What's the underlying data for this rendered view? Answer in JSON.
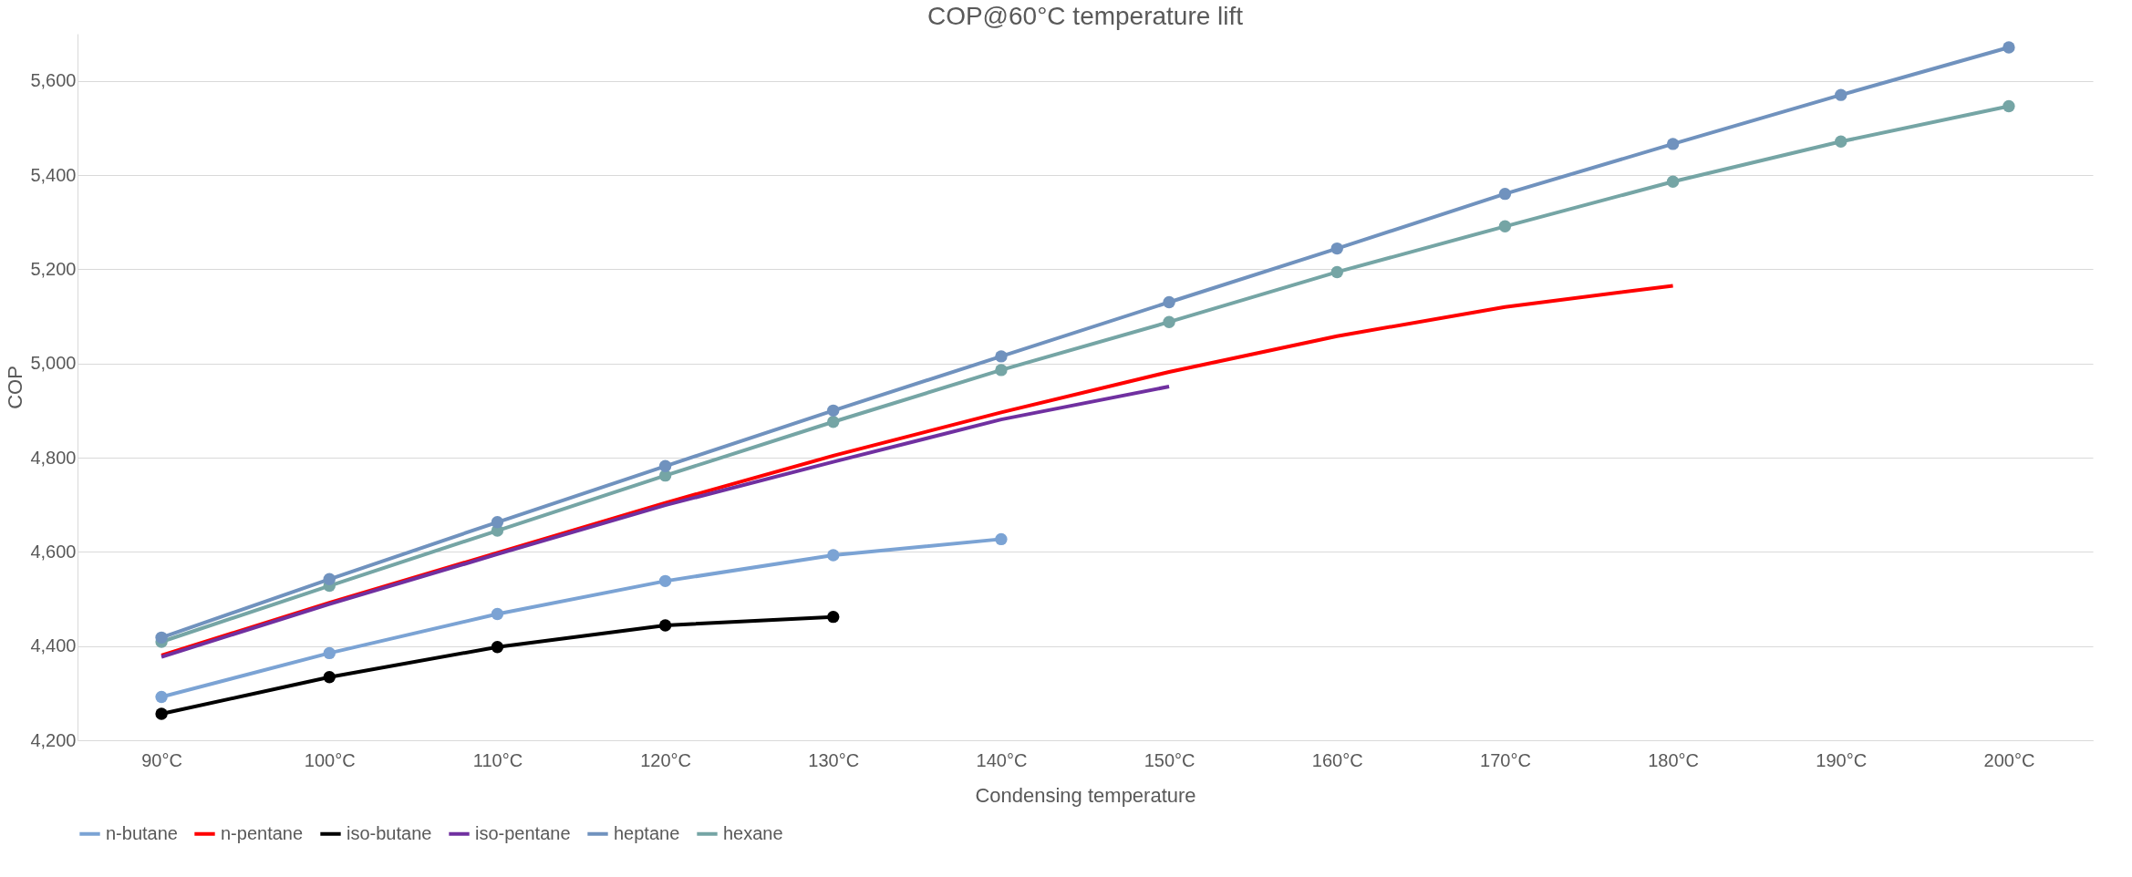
{
  "chart_data": {
    "type": "line",
    "title": "COP@60°C temperature lift",
    "xlabel": "Condensing temperature",
    "ylabel": "COP",
    "categories": [
      "90°C",
      "100°C",
      "110°C",
      "120°C",
      "130°C",
      "140°C",
      "150°C",
      "160°C",
      "170°C",
      "180°C",
      "190°C",
      "200°C"
    ],
    "series": [
      {
        "name": "n-butane",
        "color": "#7ba3d4",
        "values": [
          4292,
          4385,
          4468,
          4538,
          4593,
          4627,
          null,
          null,
          null,
          null,
          null,
          null
        ]
      },
      {
        "name": "n-pentane",
        "color": "#ff0000",
        "marker": "none",
        "values": [
          4380,
          4492,
          4598,
          4704,
          4804,
          4896,
          4982,
          5058,
          5120,
          5165,
          null,
          null
        ]
      },
      {
        "name": "iso-butane",
        "color": "#000000",
        "values": [
          4256,
          4334,
          4398,
          4444,
          4462,
          null,
          null,
          null,
          null,
          null,
          null,
          null
        ]
      },
      {
        "name": "iso-pentane",
        "color": "#7030a0",
        "marker": "none",
        "values": [
          4377,
          4489,
          4595,
          4699,
          4791,
          4881,
          4951,
          null,
          null,
          null,
          null,
          null
        ]
      },
      {
        "name": "heptane",
        "color": "#7092be",
        "values": [
          4418,
          4542,
          4663,
          4782,
          4900,
          5015,
          5130,
          5244,
          5360,
          5466,
          5570,
          5671
        ]
      },
      {
        "name": "hexane",
        "color": "#75a5a5",
        "values": [
          4409,
          4528,
          4645,
          4762,
          4876,
          4986,
          5088,
          5194,
          5291,
          5386,
          5471,
          5546
        ]
      }
    ],
    "ylim": [
      4200,
      5700
    ],
    "yticks": [
      {
        "value": 4200,
        "label": "4,200"
      },
      {
        "value": 4400,
        "label": "4,400"
      },
      {
        "value": 4600,
        "label": "4,600"
      },
      {
        "value": 4800,
        "label": "4,800"
      },
      {
        "value": 5000,
        "label": "5,000"
      },
      {
        "value": 5200,
        "label": "5,200"
      },
      {
        "value": 5400,
        "label": "5,400"
      },
      {
        "value": 5600,
        "label": "5,600"
      }
    ],
    "grid": "y",
    "legend": "bottom",
    "marker": "circle",
    "line_style": "solid"
  }
}
